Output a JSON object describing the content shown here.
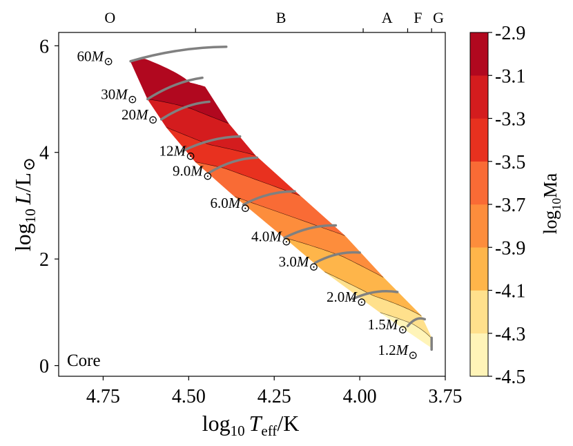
{
  "chart_data": {
    "type": "heatmap",
    "annotation": "Core",
    "xlabel": {
      "base": "log",
      "sub": "10",
      "var": "T",
      "varsub": "eff",
      "unit": "/K"
    },
    "ylabel": {
      "base": "log",
      "sub": "10",
      "var": "L",
      "unit": "/L",
      "sun": "⊙"
    },
    "x_reversed": true,
    "xlim": [
      4.88,
      3.75
    ],
    "ylim": [
      -0.2,
      6.25
    ],
    "xticks": [
      4.75,
      4.5,
      4.25,
      4.0,
      3.75
    ],
    "xtick_labels": [
      "4.75",
      "4.50",
      "4.25",
      "4.00",
      "3.75"
    ],
    "yticks": [
      0,
      2,
      4,
      6
    ],
    "ytick_labels": [
      "0",
      "2",
      "4",
      "6"
    ],
    "spectral_classes": [
      {
        "label": "O",
        "x": 4.73
      },
      {
        "label": "B",
        "x": 4.23
      },
      {
        "label": "A",
        "x": 3.92
      },
      {
        "label": "F",
        "x": 3.83
      },
      {
        "label": "G",
        "x": 3.77
      }
    ],
    "spectral_boundaries": [
      4.48,
      3.99,
      3.86,
      3.79
    ],
    "colorbar": {
      "label": {
        "base": "log",
        "sub": "10",
        "var": "Ma"
      },
      "levels": [
        -4.5,
        -4.3,
        -4.1,
        -3.9,
        -3.7,
        -3.5,
        -3.3,
        -3.1,
        -2.9
      ],
      "tick_labels": [
        "-4.5",
        "-4.3",
        "-4.1",
        "-3.9",
        "-3.7",
        "-3.5",
        "-3.3",
        "-3.1",
        "-2.9"
      ],
      "colors": [
        "#fff4b8",
        "#ffe08c",
        "#feb54a",
        "#fd8d3c",
        "#f96b35",
        "#e8311f",
        "#d41c1e",
        "#b1081f"
      ]
    },
    "band_values": [
      -4.4,
      -4.2,
      -4.0,
      -3.8,
      -3.6,
      -3.4,
      -3.2,
      -3.0
    ],
    "track_color": "#808080",
    "tracks": [
      {
        "mass": "60",
        "unit": "M",
        "sun": "⊙",
        "zams": [
          4.67,
          5.71
        ],
        "tams": [
          4.39,
          5.98
        ],
        "dy": 0.05
      },
      {
        "mass": "30",
        "unit": "M",
        "sun": "⊙",
        "zams": [
          4.62,
          5.0
        ],
        "tams": [
          4.46,
          5.4
        ],
        "dy": 0.1
      },
      {
        "mass": "20",
        "unit": "M",
        "sun": "⊙",
        "zams": [
          4.58,
          4.62
        ],
        "tams": [
          4.44,
          4.95
        ],
        "dy": 0.08
      },
      {
        "mass": "12",
        "unit": "M",
        "sun": "⊙",
        "zams": [
          4.52,
          4.02
        ],
        "tams": [
          4.35,
          4.3
        ],
        "dy": 0.06
      },
      {
        "mass": "9.0",
        "unit": "M",
        "sun": "⊙",
        "zams": [
          4.44,
          3.62
        ],
        "tams": [
          4.3,
          3.9
        ],
        "dy": 0.06
      },
      {
        "mass": "6.0",
        "unit": "M",
        "sun": "⊙",
        "zams": [
          4.34,
          3.02
        ],
        "tams": [
          4.19,
          3.27
        ],
        "dy": 0.06
      },
      {
        "mass": "4.0",
        "unit": "M",
        "sun": "⊙",
        "zams": [
          4.22,
          2.4
        ],
        "tams": [
          4.07,
          2.63
        ],
        "dy": 0.06
      },
      {
        "mass": "3.0",
        "unit": "M",
        "sun": "⊙",
        "zams": [
          4.13,
          1.93
        ],
        "tams": [
          4.0,
          2.12
        ],
        "dy": 0.05
      },
      {
        "mass": "2.0",
        "unit": "M",
        "sun": "⊙",
        "zams": [
          4.02,
          1.25
        ],
        "tams": [
          3.89,
          1.38
        ],
        "dy": 0.05
      },
      {
        "mass": "1.5",
        "unit": "M",
        "sun": "⊙",
        "zams": [
          3.86,
          0.74
        ],
        "tams": [
          3.81,
          0.87
        ],
        "dy": 0.04
      },
      {
        "mass": "1.2",
        "unit": "M",
        "sun": "⊙",
        "zams": [
          3.79,
          0.3
        ],
        "tams": [
          3.79,
          0.52
        ],
        "dy": 0.0
      }
    ],
    "track_labels": [
      {
        "mass": "60",
        "unit": "M",
        "sun": "⊙",
        "x": 4.72,
        "y": 5.71
      },
      {
        "mass": "30",
        "unit": "M",
        "sun": "⊙",
        "x": 4.65,
        "y": 5.0
      },
      {
        "mass": "20",
        "unit": "M",
        "sun": "⊙",
        "x": 4.59,
        "y": 4.62
      },
      {
        "mass": "12",
        "unit": "M",
        "sun": "⊙",
        "x": 4.48,
        "y": 3.94
      },
      {
        "mass": "9.0",
        "unit": "M",
        "sun": "⊙",
        "x": 4.43,
        "y": 3.56
      },
      {
        "mass": "6.0",
        "unit": "M",
        "sun": "⊙",
        "x": 4.32,
        "y": 2.96
      },
      {
        "mass": "4.0",
        "unit": "M",
        "sun": "⊙",
        "x": 4.2,
        "y": 2.33
      },
      {
        "mass": "3.0",
        "unit": "M",
        "sun": "⊙",
        "x": 4.12,
        "y": 1.86
      },
      {
        "mass": "2.0",
        "unit": "M",
        "sun": "⊙",
        "x": 3.98,
        "y": 1.2
      },
      {
        "mass": "1.5",
        "unit": "M",
        "sun": "⊙",
        "x": 3.86,
        "y": 0.68
      },
      {
        "mass": "1.2",
        "unit": "M",
        "sun": "⊙",
        "x": 3.83,
        "y": 0.2
      }
    ]
  }
}
